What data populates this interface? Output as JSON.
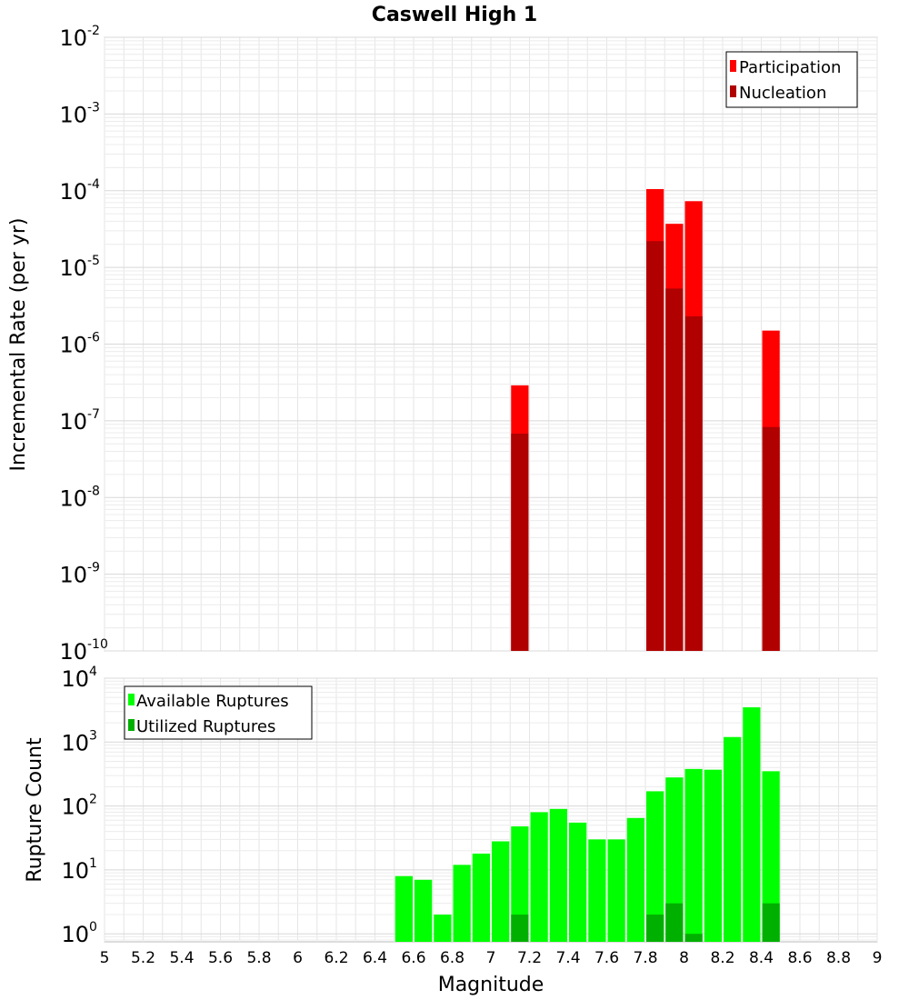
{
  "chart_data": [
    {
      "id": "rate",
      "type": "bar",
      "title": "Caswell High 1",
      "xlabel": "",
      "ylabel": "Incremental Rate (per yr)",
      "yscale": "log",
      "xlim": [
        5,
        9
      ],
      "ylim": [
        1e-10,
        0.01
      ],
      "y_ticks": [
        {
          "base": "10",
          "exp": "-10",
          "value": 1e-10
        },
        {
          "base": "10",
          "exp": "-9",
          "value": 1e-09
        },
        {
          "base": "10",
          "exp": "-8",
          "value": 1e-08
        },
        {
          "base": "10",
          "exp": "-7",
          "value": 1e-07
        },
        {
          "base": "10",
          "exp": "-6",
          "value": 1e-06
        },
        {
          "base": "10",
          "exp": "-5",
          "value": 1e-05
        },
        {
          "base": "10",
          "exp": "-4",
          "value": 0.0001
        },
        {
          "base": "10",
          "exp": "-3",
          "value": 0.001
        },
        {
          "base": "10",
          "exp": "-2",
          "value": 0.01
        }
      ],
      "bin_width": 0.1,
      "legend_position": "top-right",
      "series": [
        {
          "name": "Participation",
          "color": "#ff0000",
          "x": [
            7.15,
            7.85,
            7.95,
            8.05,
            8.45
          ],
          "values": [
            2.9e-07,
            0.000105,
            3.7e-05,
            7.3e-05,
            1.5e-06
          ]
        },
        {
          "name": "Nucleation",
          "color": "#b00000",
          "x": [
            7.15,
            7.85,
            7.95,
            8.05,
            8.45
          ],
          "values": [
            6.8e-08,
            2.2e-05,
            5.3e-06,
            2.3e-06,
            8.3e-08
          ]
        }
      ]
    },
    {
      "id": "count",
      "type": "bar",
      "title": "",
      "xlabel": "Magnitude",
      "ylabel": "Rupture Count",
      "yscale": "log",
      "xlim": [
        5,
        9
      ],
      "ylim": [
        0.75,
        10000
      ],
      "x_ticks": [
        "5",
        "5.2",
        "5.4",
        "5.6",
        "5.8",
        "6",
        "6.2",
        "6.4",
        "6.6",
        "6.8",
        "7",
        "7.2",
        "7.4",
        "7.6",
        "7.8",
        "8",
        "8.2",
        "8.4",
        "8.6",
        "8.8",
        "9"
      ],
      "y_ticks": [
        {
          "base": "10",
          "exp": "0",
          "value": 1
        },
        {
          "base": "10",
          "exp": "1",
          "value": 10
        },
        {
          "base": "10",
          "exp": "2",
          "value": 100
        },
        {
          "base": "10",
          "exp": "3",
          "value": 1000
        },
        {
          "base": "10",
          "exp": "4",
          "value": 10000
        }
      ],
      "bin_width": 0.1,
      "legend_position": "top-left",
      "series": [
        {
          "name": "Available Ruptures",
          "color": "#00ff00",
          "x": [
            6.55,
            6.65,
            6.75,
            6.85,
            6.95,
            7.05,
            7.15,
            7.25,
            7.35,
            7.45,
            7.55,
            7.65,
            7.75,
            7.85,
            7.95,
            8.05,
            8.15,
            8.25,
            8.35,
            8.45
          ],
          "values": [
            8,
            7,
            2,
            12,
            18,
            28,
            48,
            80,
            90,
            55,
            30,
            30,
            65,
            170,
            280,
            380,
            370,
            1200,
            3500,
            350
          ]
        },
        {
          "name": "Utilized Ruptures",
          "color": "#00b000",
          "x": [
            7.15,
            7.85,
            7.95,
            8.05,
            8.45
          ],
          "values": [
            2,
            2,
            3,
            1,
            3
          ]
        }
      ]
    }
  ]
}
